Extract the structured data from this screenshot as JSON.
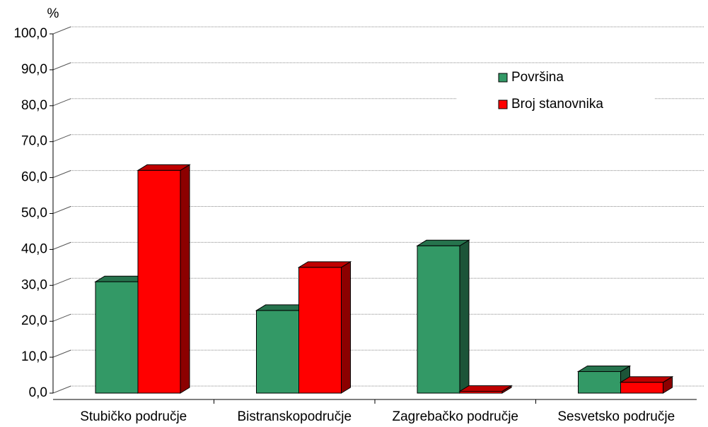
{
  "chart_data": {
    "type": "bar3d",
    "y_label": "%",
    "categories": [
      "Stubičko područje",
      "Bistranskopodručje",
      "Zagrebačko područje",
      "Sesvetsko područje"
    ],
    "series": [
      {
        "name": "Površina",
        "color": "#339966",
        "values": [
          31,
          23,
          41,
          6
        ]
      },
      {
        "name": "Broj stanovnika",
        "color": "#ff0000",
        "values": [
          62,
          35,
          0.5,
          3
        ]
      }
    ],
    "ylim": [
      0,
      100
    ],
    "yticks": [
      {
        "value": 0,
        "label": "0,0"
      },
      {
        "value": 10,
        "label": "10,0"
      },
      {
        "value": 20,
        "label": "20,0"
      },
      {
        "value": 30,
        "label": "30,0"
      },
      {
        "value": 40,
        "label": "40,0"
      },
      {
        "value": 50,
        "label": "50,0"
      },
      {
        "value": 60,
        "label": "60,0"
      },
      {
        "value": 70,
        "label": "70,0"
      },
      {
        "value": 80,
        "label": "80,0"
      },
      {
        "value": 90,
        "label": "90,0"
      },
      {
        "value": 100,
        "label": "100,0"
      }
    ],
    "grid": true,
    "legend": "upper right"
  }
}
